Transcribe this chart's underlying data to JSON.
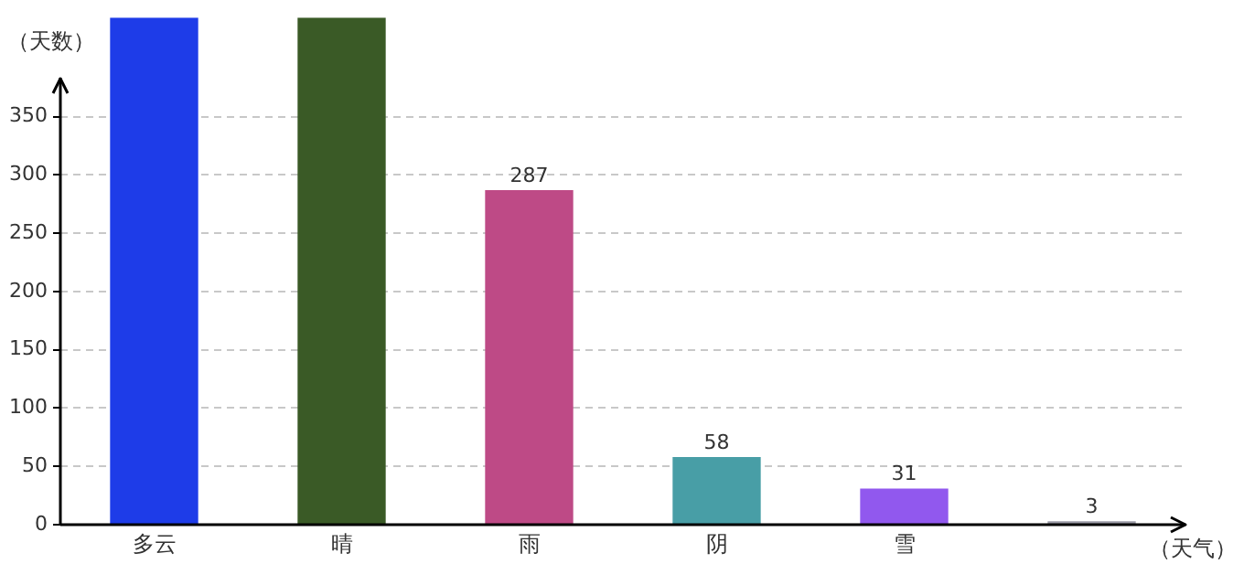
{
  "chart_data": {
    "type": "bar",
    "ylabel": "（天数）",
    "xlabel": "（天气）",
    "categories": [
      "多云",
      "晴",
      "雨",
      "阴",
      "雪",
      null
    ],
    "values": [
      435,
      435,
      287,
      58,
      31,
      3
    ],
    "colors": [
      "#1e3ce8",
      "#3a5a26",
      "#be4a86",
      "#489ea6",
      "#9158ee",
      "#9a9aa6"
    ],
    "value_labels": [
      null,
      null,
      "287",
      "58",
      "31",
      "3"
    ],
    "ylim": [
      0,
      435
    ],
    "yticks": [
      0,
      50,
      100,
      150,
      200,
      250,
      300,
      350
    ],
    "grid": "y",
    "legend": false
  }
}
